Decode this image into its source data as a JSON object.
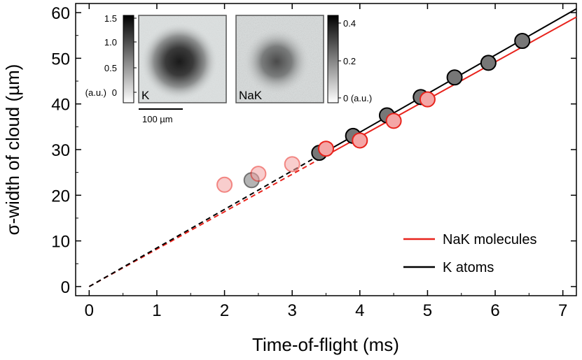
{
  "chart_data": {
    "type": "scatter",
    "title": "",
    "xlabel": "Time-of-flight (ms)",
    "ylabel": "σ-width of cloud (µm)",
    "xlim": [
      -0.2,
      7.2
    ],
    "ylim": [
      -2,
      62
    ],
    "xticks": [
      0,
      1,
      2,
      3,
      4,
      5,
      6,
      7
    ],
    "yticks": [
      0,
      10,
      20,
      30,
      40,
      50,
      60
    ],
    "xtick_labels": [
      "0",
      "1",
      "2",
      "3",
      "4",
      "5",
      "6",
      "7"
    ],
    "ytick_labels": [
      "0",
      "10",
      "20",
      "30",
      "40",
      "50",
      "60"
    ],
    "series": [
      {
        "name": "K atoms (data)",
        "color": "#777777",
        "edge": "#000000",
        "points": [
          {
            "x": 2.4,
            "y": 23.3,
            "faded": true
          },
          {
            "x": 3.4,
            "y": 29.3
          },
          {
            "x": 3.9,
            "y": 33.0
          },
          {
            "x": 4.4,
            "y": 37.5
          },
          {
            "x": 4.9,
            "y": 41.5
          },
          {
            "x": 5.4,
            "y": 45.8
          },
          {
            "x": 5.9,
            "y": 49.0
          },
          {
            "x": 6.4,
            "y": 53.8
          }
        ]
      },
      {
        "name": "NaK molecules (data)",
        "color": "#f4a6a6",
        "edge": "#e8231c",
        "points": [
          {
            "x": 2.0,
            "y": 22.3,
            "faded": true
          },
          {
            "x": 2.5,
            "y": 24.7,
            "faded": true
          },
          {
            "x": 3.0,
            "y": 26.8,
            "faded": true
          },
          {
            "x": 3.5,
            "y": 30.2
          },
          {
            "x": 4.0,
            "y": 32.0
          },
          {
            "x": 4.5,
            "y": 36.3
          },
          {
            "x": 5.0,
            "y": 41.0
          }
        ]
      }
    ],
    "fits": [
      {
        "name": "NaK molecules",
        "color": "#e8231c",
        "slope": 8.2,
        "intercept": 0.0,
        "dashed_to": 3.4,
        "x_end": 7.2
      },
      {
        "name": "K atoms",
        "color": "#000000",
        "slope": 8.45,
        "intercept": 0.0,
        "dashed_to": 3.4,
        "x_end": 7.2
      }
    ],
    "legend": {
      "position": "bottom-right",
      "entries": [
        {
          "label": "NaK molecules",
          "color": "#e8231c"
        },
        {
          "label": "K atoms",
          "color": "#000000"
        }
      ]
    },
    "insets": {
      "k_image_label": "K",
      "nak_image_label": "NaK",
      "k_colorbar_ticks": [
        "1.5",
        "1.0",
        "0.5",
        "0"
      ],
      "k_colorbar_unit": "(a.u.)",
      "nak_colorbar_ticks": [
        "0.4",
        "0.2",
        "0 (a.u.)"
      ],
      "scale_bar_label": "100 µm"
    }
  }
}
